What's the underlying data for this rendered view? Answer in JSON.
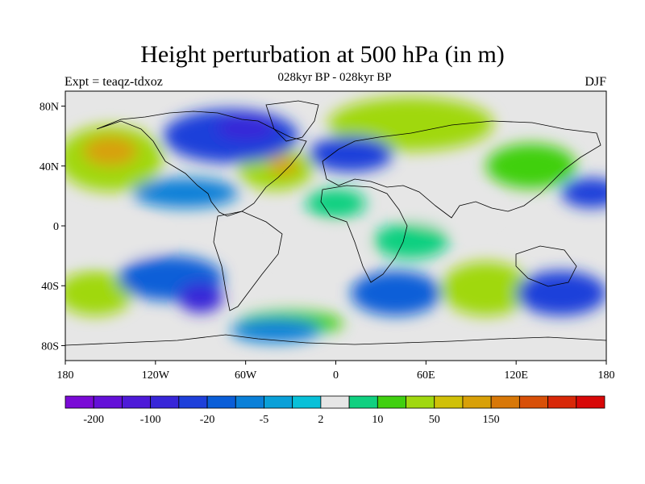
{
  "title": "Height perturbation at 500 hPa (in m)",
  "subtitle": "028kyr BP - 028kyr BP",
  "experiment": "Expt = teaqz-tdxoz",
  "season": "DJF",
  "map": {
    "projection": "cylindrical-equidistant",
    "lon_range": [
      -180,
      180
    ],
    "lat_range": [
      -90,
      90
    ],
    "x_tick_labels": [
      "180",
      "120W",
      "60W",
      "0",
      "60E",
      "120E",
      "180"
    ],
    "x_tick_values": [
      -180,
      -120,
      -60,
      0,
      60,
      120,
      180
    ],
    "y_tick_labels": [
      "80N",
      "40N",
      "0",
      "40S",
      "80S"
    ],
    "y_tick_values": [
      80,
      40,
      0,
      -40,
      -80
    ],
    "background_color": "#e6e6e6"
  },
  "field_blobs": [
    {
      "lon": -150,
      "lat": 45,
      "rlon": 35,
      "rlat": 22,
      "level": 12
    },
    {
      "lon": -150,
      "lat": 50,
      "rlon": 18,
      "rlat": 10,
      "level": 14
    },
    {
      "lon": -40,
      "lat": 38,
      "rlon": 25,
      "rlat": 14,
      "level": 12
    },
    {
      "lon": -35,
      "lat": 40,
      "rlon": 10,
      "rlat": 6,
      "level": 14
    },
    {
      "lon": 50,
      "lat": 68,
      "rlon": 55,
      "rlat": 18,
      "level": 12
    },
    {
      "lon": 130,
      "lat": 40,
      "rlon": 30,
      "rlat": 15,
      "level": 11
    },
    {
      "lon": -160,
      "lat": -45,
      "rlon": 25,
      "rlat": 15,
      "level": 12
    },
    {
      "lon": 100,
      "lat": -42,
      "rlon": 30,
      "rlat": 18,
      "level": 12
    },
    {
      "lon": -30,
      "lat": -65,
      "rlon": 35,
      "rlat": 8,
      "level": 11
    },
    {
      "lon": -70,
      "lat": 60,
      "rlon": 45,
      "rlat": 18,
      "level": 4
    },
    {
      "lon": -60,
      "lat": 65,
      "rlon": 20,
      "rlat": 8,
      "level": 3
    },
    {
      "lon": 10,
      "lat": 48,
      "rlon": 28,
      "rlat": 12,
      "level": 4
    },
    {
      "lon": 170,
      "lat": 22,
      "rlon": 20,
      "rlat": 10,
      "level": 4
    },
    {
      "lon": -100,
      "lat": 22,
      "rlon": 35,
      "rlat": 10,
      "level": 6
    },
    {
      "lon": -110,
      "lat": -35,
      "rlon": 35,
      "rlat": 15,
      "level": 5
    },
    {
      "lon": 40,
      "lat": -45,
      "rlon": 30,
      "rlat": 15,
      "level": 5
    },
    {
      "lon": 150,
      "lat": -45,
      "rlon": 30,
      "rlat": 15,
      "level": 4
    },
    {
      "lon": -90,
      "lat": -48,
      "rlon": 15,
      "rlat": 10,
      "level": 3
    },
    {
      "lon": 0,
      "lat": 15,
      "rlon": 20,
      "rlat": 10,
      "level": 10
    },
    {
      "lon": 75,
      "lat": 10,
      "rlon": 30,
      "rlat": 10,
      "level": 9
    },
    {
      "lon": -150,
      "lat": -10,
      "rlon": 35,
      "rlat": 10,
      "level": 9
    },
    {
      "lon": -10,
      "lat": -15,
      "rlon": 30,
      "rlat": 12,
      "level": 9
    },
    {
      "lon": 50,
      "lat": -10,
      "rlon": 25,
      "rlat": 12,
      "level": 10
    },
    {
      "lon": -40,
      "lat": -70,
      "rlon": 30,
      "rlat": 8,
      "level": 6
    }
  ],
  "colorbar": {
    "colors": [
      "#7a0ad6",
      "#6410d8",
      "#4e1ad8",
      "#3826d8",
      "#1e40da",
      "#0a5ed8",
      "#0a80d8",
      "#0aa0d8",
      "#08c0d8",
      "#e6e6e6",
      "#10d080",
      "#40d010",
      "#a0d810",
      "#d0c008",
      "#d8a008",
      "#d87808",
      "#d85008",
      "#d82808",
      "#d80808"
    ],
    "labels": [
      "-200",
      "-100",
      "-20",
      "-5",
      "2",
      "10",
      "50",
      "150"
    ],
    "label_boundaries": [
      1,
      3,
      5,
      7,
      9,
      11,
      13,
      15
    ]
  }
}
